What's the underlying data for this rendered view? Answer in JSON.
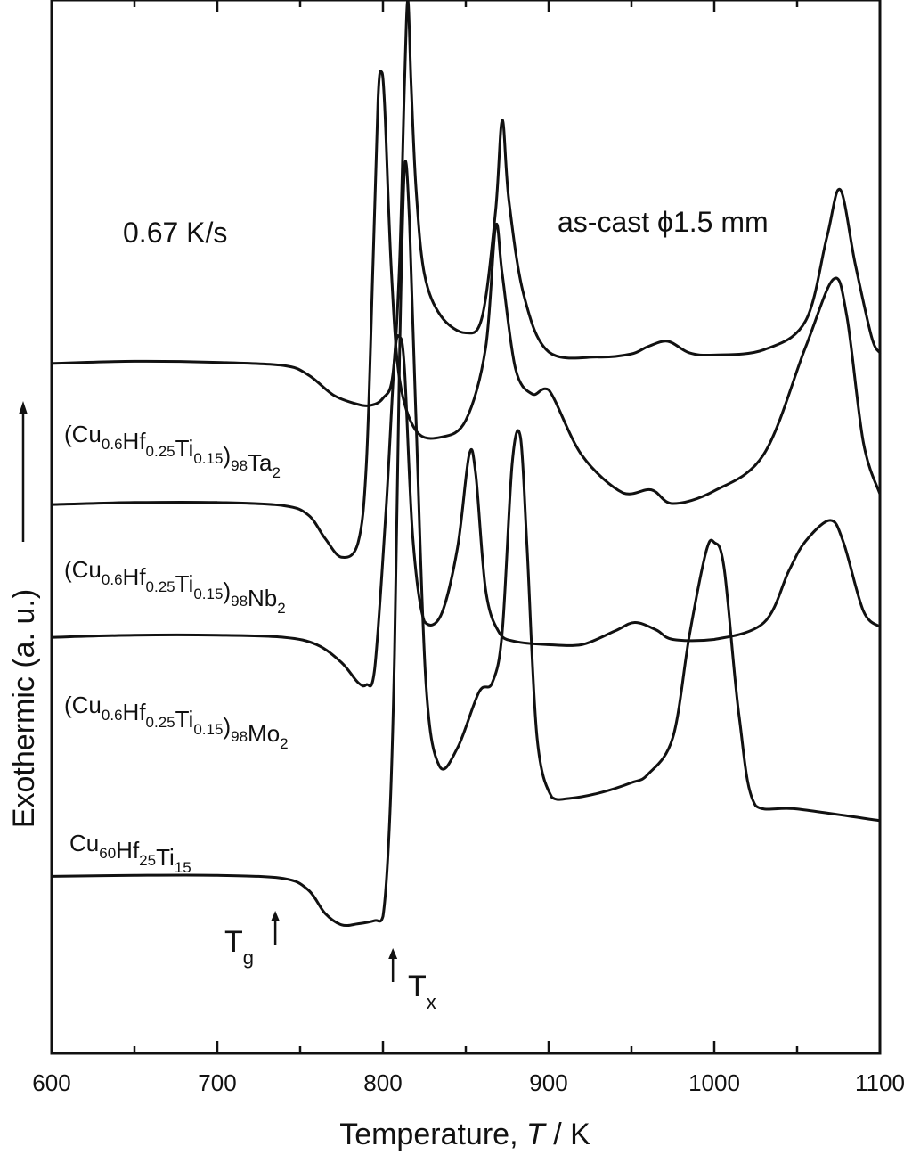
{
  "chart_data": {
    "type": "line",
    "xlabel": "Temperature, ",
    "xlabel_var": "T",
    "xlabel_unit": " / K",
    "ylabel": "Exothermic (a. u.)",
    "xlim": [
      600,
      1100
    ],
    "ylim": [
      0,
      100
    ],
    "x_ticks": [
      600,
      700,
      800,
      900,
      1000,
      1100
    ],
    "x_tick_labels": [
      "600",
      "700",
      "800",
      "900",
      "1000",
      "1100"
    ],
    "y_ticks_shown": false,
    "grid": false,
    "annotations": {
      "rate": "0.67 K/s",
      "sample": "as-cast ϕ1.5 mm"
    },
    "markers": [
      {
        "symbol": "T",
        "sub": "g",
        "x": 735
      },
      {
        "symbol": "T",
        "sub": "x",
        "x": 806
      }
    ],
    "series": [
      {
        "id": "ta",
        "label_parts": [
          [
            "(Cu",
            ""
          ],
          [
            "0.6",
            "sub"
          ],
          [
            "Hf",
            ""
          ],
          [
            "0.25",
            "sub"
          ],
          [
            "Ti",
            ""
          ],
          [
            "0.15",
            "sub"
          ],
          [
            ")",
            ""
          ],
          [
            "98",
            "sub"
          ],
          [
            "Ta",
            ""
          ],
          [
            "2",
            "sub"
          ]
        ],
        "x": [
          600,
          650,
          700,
          740,
          755,
          770,
          783,
          792,
          800,
          806,
          810,
          813,
          815,
          817,
          820,
          825,
          835,
          850,
          860,
          868,
          872,
          876,
          885,
          900,
          930,
          950,
          960,
          972,
          985,
          1000,
          1030,
          1055,
          1068,
          1076,
          1085,
          1095,
          1100
        ],
        "y": [
          65.5,
          65.7,
          65.6,
          65.3,
          64.4,
          62.5,
          61.7,
          61.5,
          62.2,
          64.5,
          75,
          92,
          100,
          92,
          82,
          74,
          70,
          68.4,
          70,
          80,
          88.6,
          81,
          72,
          66.6,
          66.1,
          66.4,
          67.1,
          67.6,
          66.5,
          66.3,
          66.8,
          69.5,
          77.5,
          82,
          75,
          68,
          66.5
        ]
      },
      {
        "id": "nb",
        "label_parts": [
          [
            "(Cu",
            ""
          ],
          [
            "0.6",
            "sub"
          ],
          [
            "Hf",
            ""
          ],
          [
            "0.25",
            "sub"
          ],
          [
            "Ti",
            ""
          ],
          [
            "0.15",
            "sub"
          ],
          [
            ")",
            ""
          ],
          [
            "98",
            "sub"
          ],
          [
            "Nb",
            ""
          ],
          [
            "2",
            "sub"
          ]
        ],
        "x": [
          600,
          650,
          700,
          740,
          755,
          765,
          775,
          785,
          790,
          794,
          797,
          799,
          801,
          805,
          810,
          820,
          835,
          850,
          862,
          868,
          872,
          880,
          890,
          900,
          920,
          945,
          962,
          975,
          1000,
          1030,
          1055,
          1072,
          1080,
          1090,
          1100
        ],
        "y": [
          52.1,
          52.3,
          52.3,
          52.0,
          51.1,
          48.9,
          47.1,
          48.5,
          56,
          75,
          90.5,
          93.2,
          90,
          74.5,
          64,
          59.1,
          58.5,
          60.1,
          67,
          78.5,
          74,
          65,
          62.6,
          63,
          56.8,
          53.2,
          53.5,
          52.2,
          53.4,
          56.9,
          67,
          73.5,
          70,
          58,
          53.1
        ]
      },
      {
        "id": "mo",
        "label_parts": [
          [
            "(Cu",
            ""
          ],
          [
            "0.6",
            "sub"
          ],
          [
            "Hf",
            ""
          ],
          [
            "0.25",
            "sub"
          ],
          [
            "Ti",
            ""
          ],
          [
            "0.15",
            "sub"
          ],
          [
            ")",
            ""
          ],
          [
            "98",
            "sub"
          ],
          [
            "Mo",
            ""
          ],
          [
            "2",
            "sub"
          ]
        ],
        "x": [
          600,
          650,
          700,
          740,
          760,
          775,
          785,
          790,
          795,
          802,
          807,
          810,
          813,
          818,
          825,
          835,
          845,
          852,
          856,
          862,
          870,
          880,
          900,
          920,
          940,
          952,
          965,
          975,
          1000,
          1030,
          1045,
          1055,
          1070,
          1078,
          1090,
          1100
        ],
        "y": [
          39.5,
          39.7,
          39.7,
          39.5,
          38.8,
          37.1,
          35.2,
          35.0,
          36.5,
          52,
          66,
          68,
          65,
          49,
          41,
          41.6,
          48,
          56.8,
          55,
          44,
          40,
          39.1,
          38.8,
          38.8,
          40.1,
          40.9,
          40.2,
          39.3,
          39.3,
          40.9,
          45.8,
          48.6,
          50.6,
          48.5,
          42,
          40.5
        ]
      },
      {
        "id": "cu",
        "label_parts": [
          [
            "Cu",
            ""
          ],
          [
            "60",
            "sub"
          ],
          [
            "Hf",
            ""
          ],
          [
            "25",
            "sub"
          ],
          [
            "Ti",
            ""
          ],
          [
            "15",
            "sub"
          ]
        ],
        "x": [
          600,
          650,
          700,
          740,
          755,
          765,
          775,
          785,
          795,
          800,
          804,
          807,
          810,
          813,
          816,
          820,
          826,
          834,
          845,
          858,
          866,
          872,
          878,
          883,
          887,
          893,
          902,
          912,
          930,
          950,
          960,
          975,
          985,
          995,
          1000,
          1006,
          1015,
          1025,
          1050,
          1100
        ],
        "y": [
          16.8,
          16.9,
          16.9,
          16.6,
          15.5,
          13.3,
          12.2,
          12.3,
          12.6,
          13.0,
          22,
          38,
          66,
          84,
          79,
          60,
          35,
          27.3,
          29,
          34.3,
          35.2,
          40,
          56,
          58.5,
          48,
          30,
          24.3,
          24.2,
          24.7,
          25.7,
          26.5,
          30,
          39.7,
          47.6,
          48.5,
          46,
          32,
          23.5,
          23.2,
          22.1
        ]
      }
    ]
  }
}
